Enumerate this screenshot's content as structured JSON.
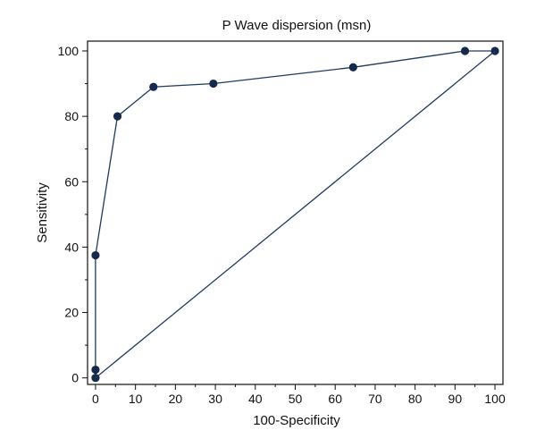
{
  "chart_data": {
    "type": "line",
    "title": "P Wave dispersion (msn)",
    "xlabel": "100-Specificity",
    "ylabel": "Sensitivity",
    "xlim": [
      -2,
      102
    ],
    "ylim": [
      -2,
      103
    ],
    "x_ticks": [
      0,
      10,
      20,
      30,
      40,
      50,
      60,
      70,
      80,
      90,
      100
    ],
    "y_ticks": [
      0,
      20,
      40,
      60,
      80,
      100
    ],
    "grid": false,
    "series": [
      {
        "color": "#1f3a5f",
        "markers": true,
        "points": [
          {
            "x": 0,
            "y": 0
          },
          {
            "x": 0,
            "y": 2.5
          },
          {
            "x": 0,
            "y": 37.5
          },
          {
            "x": 5.5,
            "y": 80
          },
          {
            "x": 14.5,
            "y": 89
          },
          {
            "x": 29.5,
            "y": 90
          },
          {
            "x": 64.5,
            "y": 95
          },
          {
            "x": 92.5,
            "y": 100
          },
          {
            "x": 100,
            "y": 100
          }
        ]
      },
      {
        "color": "#1f3a5f",
        "markers": false,
        "points": [
          {
            "x": 0,
            "y": 0
          },
          {
            "x": 100,
            "y": 100
          }
        ]
      }
    ]
  }
}
